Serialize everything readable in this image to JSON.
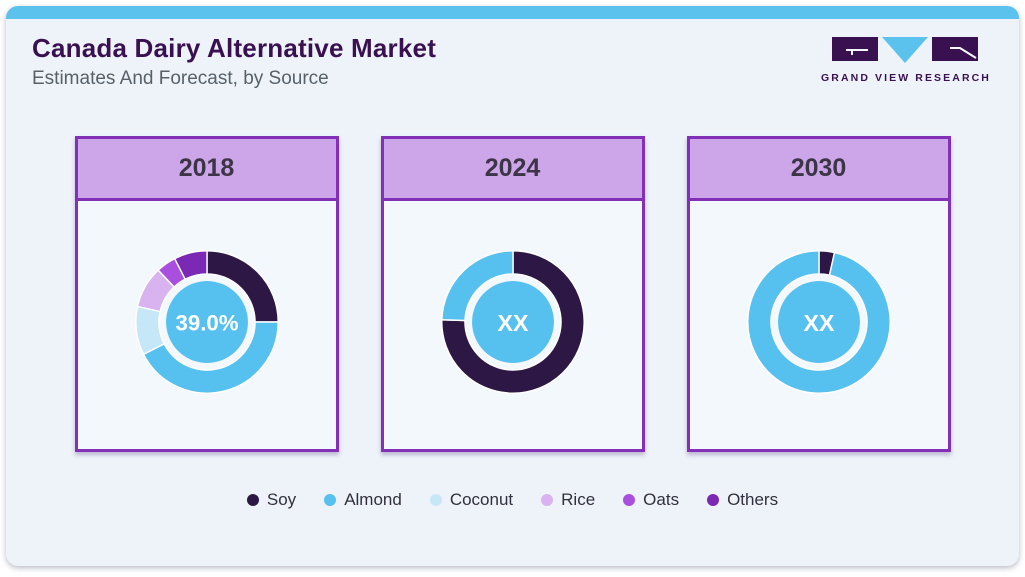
{
  "header": {
    "title": "Canada Dairy Alternative Market",
    "subtitle": "Estimates And Forecast, by Source"
  },
  "logo": {
    "text": "GRAND VIEW RESEARCH"
  },
  "colors": {
    "accent_bar": "#5bc2ee",
    "canvas_bg": "#edf3f9",
    "panel_bg": "#f3f8fc",
    "panel_border": "#8230b8",
    "panel_header_bg": "#cda5e9",
    "title_text": "#3a1150",
    "subtitle_text": "#5a6068",
    "year_text": "#3c3546",
    "center_circle": "#56c1ee",
    "center_label_text": "#ffffff"
  },
  "legend": [
    {
      "label": "Soy",
      "color": "#2d1745"
    },
    {
      "label": "Almond",
      "color": "#56c1ee"
    },
    {
      "label": "Coconut",
      "color": "#c5e7f8"
    },
    {
      "label": "Rice",
      "color": "#d9b3ef"
    },
    {
      "label": "Oats",
      "color": "#a94fe0"
    },
    {
      "label": "Others",
      "color": "#7b28b5"
    }
  ],
  "chart_data": {
    "type": "pie",
    "title": "Canada Dairy Alternative Market, Estimates And Forecast, by Source",
    "units": "percent share of market",
    "legend_position": "bottom",
    "categories": [
      "Soy",
      "Almond",
      "Coconut",
      "Rice",
      "Oats",
      "Others"
    ],
    "charts": [
      {
        "year": "2018",
        "center_label": "39.0%",
        "series": [
          {
            "name": "Soy",
            "value": 25
          },
          {
            "name": "Almond",
            "value": 42.5
          },
          {
            "name": "Coconut",
            "value": 11
          },
          {
            "name": "Rice",
            "value": 9.5
          },
          {
            "name": "Oats",
            "value": 4.5
          },
          {
            "name": "Others",
            "value": 7.5
          }
        ]
      },
      {
        "year": "2024",
        "center_label": "XX",
        "series": [
          {
            "name": "Soy",
            "value": 75.5
          },
          {
            "name": "Almond",
            "value": 24.5
          }
        ]
      },
      {
        "year": "2030",
        "center_label": "XX",
        "series": [
          {
            "name": "Soy",
            "value": 3.5
          },
          {
            "name": "Almond",
            "value": 96.5
          }
        ]
      }
    ]
  }
}
